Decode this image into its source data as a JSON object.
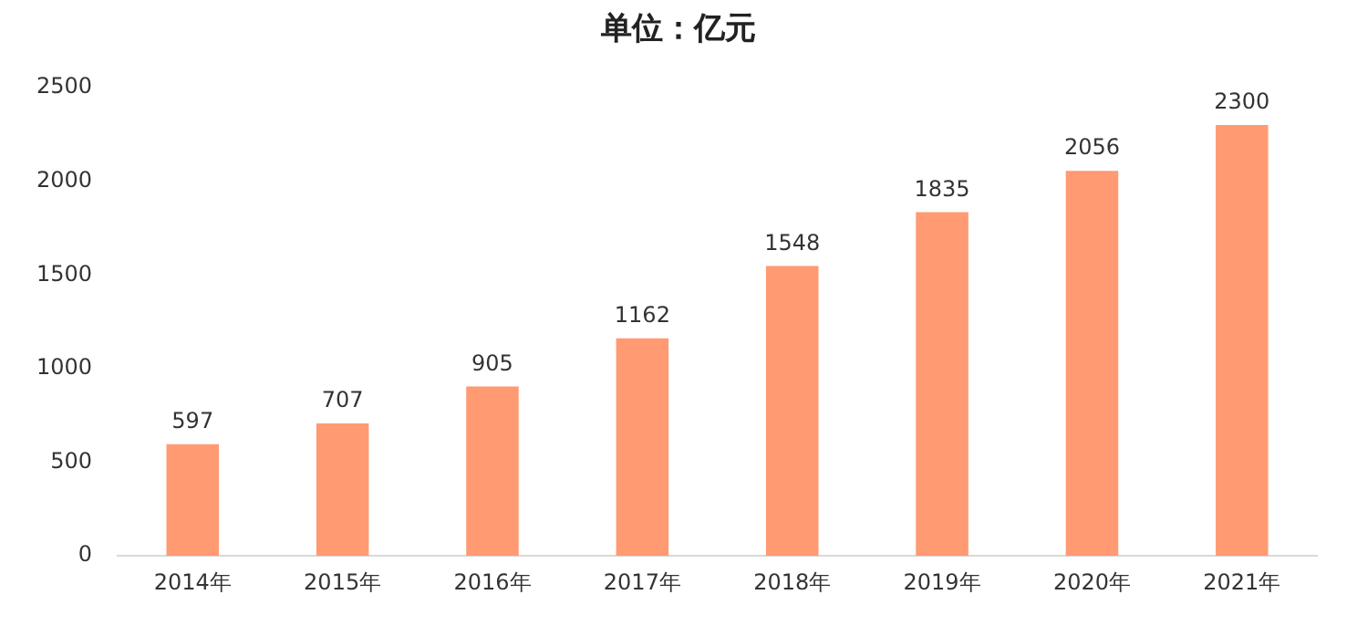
{
  "chart_data": {
    "type": "bar",
    "title": "单位：亿元",
    "categories": [
      "2014年",
      "2015年",
      "2016年",
      "2017年",
      "2018年",
      "2019年",
      "2020年",
      "2021年"
    ],
    "values": [
      597,
      707,
      905,
      1162,
      1548,
      1835,
      2056,
      2300
    ],
    "color": "#ff9a72",
    "ylim": [
      0,
      2500
    ],
    "yticks": [
      0,
      500,
      1000,
      1500,
      2000,
      2500
    ],
    "grid": false,
    "data_labels": true
  }
}
